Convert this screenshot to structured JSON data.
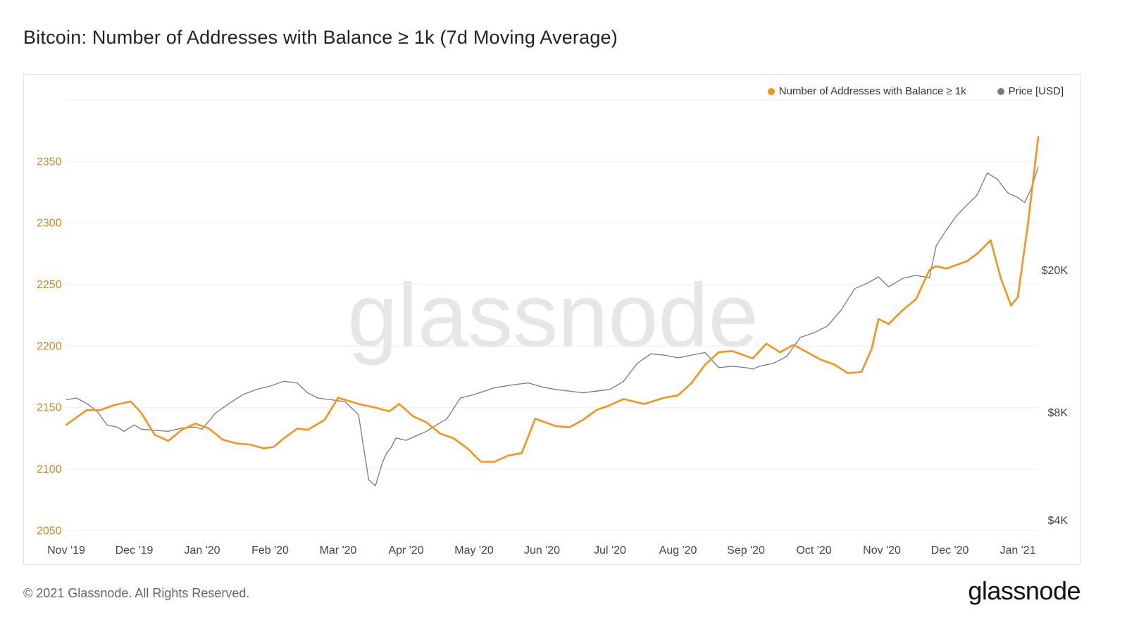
{
  "title": "Bitcoin: Number of Addresses with Balance ≥ 1k (7d Moving Average)",
  "footer": {
    "copyright": "© 2021 Glassnode. All Rights Reserved.",
    "brand": "glassnode"
  },
  "watermark": "glassnode",
  "colors": {
    "addresses": "#f7931a",
    "price": "#7a7a7a",
    "left_axis_text": "#c98a2b",
    "grid": "#eeeeee"
  },
  "chart_data": {
    "type": "line",
    "title": "Bitcoin: Number of Addresses with Balance ≥ 1k (7d Moving Average)",
    "x_tick_labels": [
      "Nov '19",
      "Dec '19",
      "Jan '20",
      "Feb '20",
      "Mar '20",
      "Apr '20",
      "May '20",
      "Jun '20",
      "Jul '20",
      "Aug '20",
      "Sep '20",
      "Oct '20",
      "Nov '20",
      "Dec '20",
      "Jan '21"
    ],
    "x_range_months": [
      0,
      14.3
    ],
    "y_left": {
      "label": "Number of Addresses with Balance ≥ 1k",
      "min": 2045,
      "max": 2400,
      "ticks": [
        2050,
        2100,
        2150,
        2200,
        2250,
        2300,
        2350
      ]
    },
    "y_right": {
      "label": "Price [USD]",
      "scale": "log",
      "min": 3600,
      "max": 60000,
      "ticks": [
        4000,
        8000,
        20000
      ],
      "tick_labels": [
        "$4K",
        "$8K",
        "$20K"
      ]
    },
    "legend": [
      {
        "name": "Number of Addresses with Balance ≥ 1k",
        "color": "#f7931a"
      },
      {
        "name": "Price [USD]",
        "color": "#7a7a7a"
      }
    ],
    "series": [
      {
        "name": "Number of Addresses with Balance ≥ 1k",
        "axis": "left",
        "x": [
          0,
          0.15,
          0.3,
          0.5,
          0.7,
          0.95,
          1.1,
          1.3,
          1.5,
          1.7,
          1.9,
          2.1,
          2.3,
          2.5,
          2.7,
          2.9,
          3.05,
          3.2,
          3.4,
          3.55,
          3.8,
          4.0,
          4.3,
          4.55,
          4.75,
          4.9,
          5.1,
          5.3,
          5.5,
          5.7,
          5.9,
          6.1,
          6.3,
          6.5,
          6.7,
          6.9,
          7.2,
          7.4,
          7.6,
          7.8,
          8.0,
          8.2,
          8.5,
          8.8,
          9.0,
          9.2,
          9.4,
          9.6,
          9.8,
          10.0,
          10.1,
          10.3,
          10.5,
          10.7,
          10.9,
          11.1,
          11.3,
          11.5,
          11.7,
          11.85,
          11.95,
          12.1,
          12.3,
          12.5,
          12.7,
          12.8,
          12.95,
          13.1,
          13.25,
          13.4,
          13.6,
          13.75,
          13.9,
          14.0,
          14.15,
          14.3
        ],
        "values": [
          2136,
          2142,
          2148,
          2148,
          2152,
          2155,
          2146,
          2128,
          2123,
          2132,
          2137,
          2133,
          2124,
          2121,
          2120,
          2117,
          2118,
          2125,
          2133,
          2132,
          2140,
          2158,
          2153,
          2150,
          2147,
          2153,
          2143,
          2138,
          2129,
          2125,
          2117,
          2106,
          2106,
          2111,
          2113,
          2141,
          2135,
          2134,
          2140,
          2148,
          2152,
          2157,
          2153,
          2158,
          2160,
          2170,
          2185,
          2195,
          2196,
          2192,
          2190,
          2202,
          2195,
          2201,
          2195,
          2189,
          2185,
          2178,
          2179,
          2198,
          2222,
          2218,
          2229,
          2238,
          2262,
          2265,
          2263,
          2266,
          2269,
          2275,
          2286,
          2255,
          2233,
          2240,
          2300,
          2370
        ]
      },
      {
        "name": "Price [USD]",
        "axis": "right",
        "x": [
          0,
          0.15,
          0.3,
          0.45,
          0.6,
          0.75,
          0.85,
          1.0,
          1.1,
          1.3,
          1.5,
          1.7,
          1.9,
          2.0,
          2.2,
          2.4,
          2.6,
          2.8,
          3.0,
          3.2,
          3.4,
          3.55,
          3.7,
          3.9,
          4.1,
          4.3,
          4.45,
          4.55,
          4.65,
          4.72,
          4.78,
          4.85,
          5.0,
          5.15,
          5.3,
          5.45,
          5.6,
          5.8,
          6.0,
          6.15,
          6.3,
          6.45,
          6.6,
          6.8,
          7.0,
          7.2,
          7.4,
          7.6,
          7.8,
          8.0,
          8.2,
          8.4,
          8.6,
          8.8,
          9.0,
          9.2,
          9.4,
          9.6,
          9.8,
          10.0,
          10.1,
          10.2,
          10.4,
          10.6,
          10.8,
          11.0,
          11.2,
          11.4,
          11.6,
          11.8,
          11.95,
          12.1,
          12.3,
          12.5,
          12.7,
          12.8,
          12.95,
          13.1,
          13.25,
          13.4,
          13.55,
          13.7,
          13.85,
          14.0,
          14.1,
          14.2,
          14.3
        ],
        "values": [
          8700,
          8800,
          8500,
          8100,
          7400,
          7300,
          7100,
          7400,
          7200,
          7150,
          7100,
          7250,
          7300,
          7200,
          8000,
          8500,
          9000,
          9300,
          9500,
          9800,
          9700,
          9100,
          8800,
          8700,
          8600,
          7900,
          5200,
          5000,
          5800,
          6200,
          6400,
          6800,
          6700,
          6900,
          7100,
          7400,
          7700,
          8800,
          9000,
          9200,
          9400,
          9500,
          9600,
          9700,
          9450,
          9300,
          9200,
          9100,
          9200,
          9300,
          9800,
          11000,
          11700,
          11600,
          11400,
          11600,
          11800,
          10700,
          10800,
          10700,
          10600,
          10800,
          11000,
          11500,
          13000,
          13400,
          14000,
          15500,
          17800,
          18500,
          19200,
          18000,
          19000,
          19400,
          19100,
          23500,
          26000,
          28500,
          30500,
          32500,
          37500,
          36000,
          33000,
          32000,
          31000,
          34000,
          39000
        ]
      }
    ]
  }
}
